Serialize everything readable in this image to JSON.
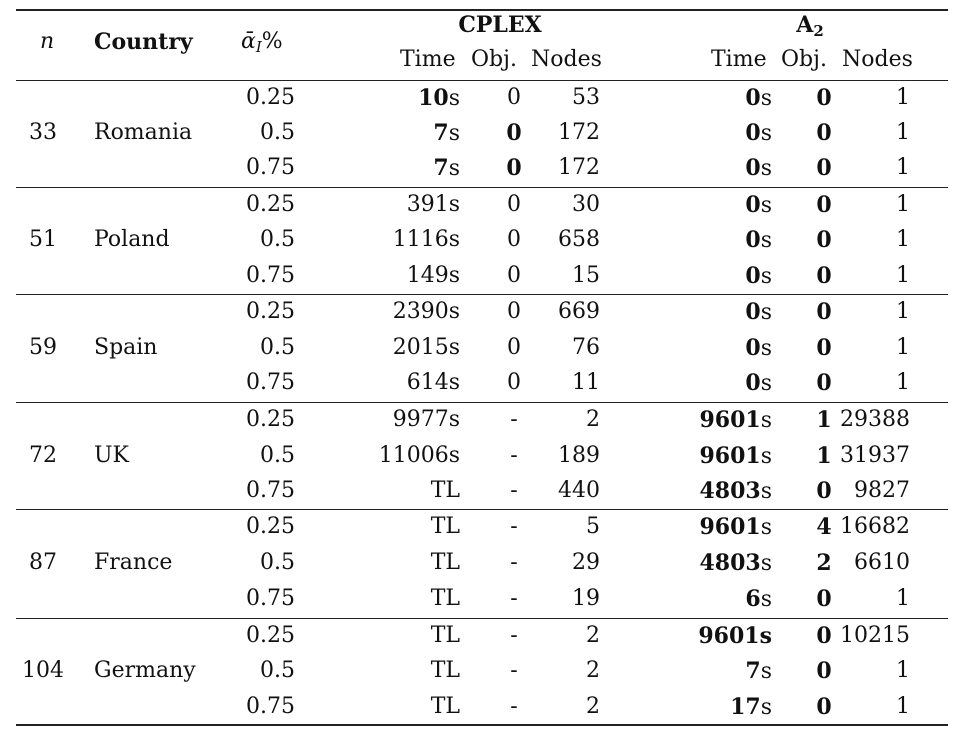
{
  "header": {
    "n_label": "n",
    "country_label": "Country",
    "alpha_symbol": "ᾱ",
    "alpha_sub": "I",
    "alpha_suffix": "%",
    "group1": "CPLEX",
    "group2_base": "A",
    "group2_sub": "2",
    "sub_time": "Time",
    "sub_obj": "Obj.",
    "sub_nodes": "Nodes"
  },
  "rows": [
    {
      "n": "33",
      "country": "Romania",
      "alpha": "0.25",
      "cplex_time": "10",
      "cplex_time_unit": "s",
      "cplex_time_bold": true,
      "cplex_obj": "0",
      "cplex_obj_bold": false,
      "cplex_nodes": "53",
      "a2_time": "0",
      "a2_time_unit": "s",
      "a2_time_bold": true,
      "a2_obj": "0",
      "a2_obj_bold": true,
      "a2_nodes": "1"
    },
    {
      "n": "",
      "country": "",
      "alpha": "0.5",
      "cplex_time": "7",
      "cplex_time_unit": "s",
      "cplex_time_bold": true,
      "cplex_obj": "0",
      "cplex_obj_bold": true,
      "cplex_nodes": "172",
      "a2_time": "0",
      "a2_time_unit": "s",
      "a2_time_bold": true,
      "a2_obj": "0",
      "a2_obj_bold": true,
      "a2_nodes": "1"
    },
    {
      "n": "",
      "country": "",
      "alpha": "0.75",
      "cplex_time": "7",
      "cplex_time_unit": "s",
      "cplex_time_bold": true,
      "cplex_obj": "0",
      "cplex_obj_bold": true,
      "cplex_nodes": "172",
      "a2_time": "0",
      "a2_time_unit": "s",
      "a2_time_bold": true,
      "a2_obj": "0",
      "a2_obj_bold": true,
      "a2_nodes": "1"
    },
    {
      "n": "51",
      "country": "Poland",
      "alpha": "0.25",
      "cplex_time": "391s",
      "cplex_time_unit": "",
      "cplex_time_bold": false,
      "cplex_obj": "0",
      "cplex_obj_bold": false,
      "cplex_nodes": "30",
      "a2_time": "0",
      "a2_time_unit": "s",
      "a2_time_bold": true,
      "a2_obj": "0",
      "a2_obj_bold": true,
      "a2_nodes": "1"
    },
    {
      "n": "",
      "country": "",
      "alpha": "0.5",
      "cplex_time": "1116s",
      "cplex_time_unit": "",
      "cplex_time_bold": false,
      "cplex_obj": "0",
      "cplex_obj_bold": false,
      "cplex_nodes": "658",
      "a2_time": "0",
      "a2_time_unit": "s",
      "a2_time_bold": true,
      "a2_obj": "0",
      "a2_obj_bold": true,
      "a2_nodes": "1"
    },
    {
      "n": "",
      "country": "",
      "alpha": "0.75",
      "cplex_time": "149s",
      "cplex_time_unit": "",
      "cplex_time_bold": false,
      "cplex_obj": "0",
      "cplex_obj_bold": false,
      "cplex_nodes": "15",
      "a2_time": "0",
      "a2_time_unit": "s",
      "a2_time_bold": true,
      "a2_obj": "0",
      "a2_obj_bold": true,
      "a2_nodes": "1"
    },
    {
      "n": "59",
      "country": "Spain",
      "alpha": "0.25",
      "cplex_time": "2390s",
      "cplex_time_unit": "",
      "cplex_time_bold": false,
      "cplex_obj": "0",
      "cplex_obj_bold": false,
      "cplex_nodes": "669",
      "a2_time": "0",
      "a2_time_unit": "s",
      "a2_time_bold": true,
      "a2_obj": "0",
      "a2_obj_bold": true,
      "a2_nodes": "1"
    },
    {
      "n": "",
      "country": "",
      "alpha": "0.5",
      "cplex_time": "2015s",
      "cplex_time_unit": "",
      "cplex_time_bold": false,
      "cplex_obj": "0",
      "cplex_obj_bold": false,
      "cplex_nodes": "76",
      "a2_time": "0",
      "a2_time_unit": "s",
      "a2_time_bold": true,
      "a2_obj": "0",
      "a2_obj_bold": true,
      "a2_nodes": "1"
    },
    {
      "n": "",
      "country": "",
      "alpha": "0.75",
      "cplex_time": "614s",
      "cplex_time_unit": "",
      "cplex_time_bold": false,
      "cplex_obj": "0",
      "cplex_obj_bold": false,
      "cplex_nodes": "11",
      "a2_time": "0",
      "a2_time_unit": "s",
      "a2_time_bold": true,
      "a2_obj": "0",
      "a2_obj_bold": true,
      "a2_nodes": "1"
    },
    {
      "n": "72",
      "country": "UK",
      "alpha": "0.25",
      "cplex_time": "9977s",
      "cplex_time_unit": "",
      "cplex_time_bold": false,
      "cplex_obj": "-",
      "cplex_obj_bold": false,
      "cplex_nodes": "2",
      "a2_time": "9601",
      "a2_time_unit": "s",
      "a2_time_bold": true,
      "a2_obj": "1",
      "a2_obj_bold": true,
      "a2_nodes": "29388"
    },
    {
      "n": "",
      "country": "",
      "alpha": "0.5",
      "cplex_time": "11006s",
      "cplex_time_unit": "",
      "cplex_time_bold": false,
      "cplex_obj": "-",
      "cplex_obj_bold": false,
      "cplex_nodes": "189",
      "a2_time": "9601",
      "a2_time_unit": "s",
      "a2_time_bold": true,
      "a2_obj": "1",
      "a2_obj_bold": true,
      "a2_nodes": "31937"
    },
    {
      "n": "",
      "country": "",
      "alpha": "0.75",
      "cplex_time": "TL",
      "cplex_time_unit": "",
      "cplex_time_bold": false,
      "cplex_obj": "-",
      "cplex_obj_bold": false,
      "cplex_nodes": "440",
      "a2_time": "4803",
      "a2_time_unit": "s",
      "a2_time_bold": true,
      "a2_obj": "0",
      "a2_obj_bold": true,
      "a2_nodes": "9827"
    },
    {
      "n": "87",
      "country": "France",
      "alpha": "0.25",
      "cplex_time": "TL",
      "cplex_time_unit": "",
      "cplex_time_bold": false,
      "cplex_obj": "-",
      "cplex_obj_bold": false,
      "cplex_nodes": "5",
      "a2_time": "9601",
      "a2_time_unit": "s",
      "a2_time_bold": true,
      "a2_obj": "4",
      "a2_obj_bold": true,
      "a2_nodes": "16682"
    },
    {
      "n": "",
      "country": "",
      "alpha": "0.5",
      "cplex_time": "TL",
      "cplex_time_unit": "",
      "cplex_time_bold": false,
      "cplex_obj": "-",
      "cplex_obj_bold": false,
      "cplex_nodes": "29",
      "a2_time": "4803",
      "a2_time_unit": "s",
      "a2_time_bold": true,
      "a2_obj": "2",
      "a2_obj_bold": true,
      "a2_nodes": "6610"
    },
    {
      "n": "",
      "country": "",
      "alpha": "0.75",
      "cplex_time": "TL",
      "cplex_time_unit": "",
      "cplex_time_bold": false,
      "cplex_obj": "-",
      "cplex_obj_bold": false,
      "cplex_nodes": "19",
      "a2_time": "6",
      "a2_time_unit": "s",
      "a2_time_bold": true,
      "a2_obj": "0",
      "a2_obj_bold": true,
      "a2_nodes": "1"
    },
    {
      "n": "104",
      "country": "Germany",
      "alpha": "0.25",
      "cplex_time": "TL",
      "cplex_time_unit": "",
      "cplex_time_bold": false,
      "cplex_obj": "-",
      "cplex_obj_bold": false,
      "cplex_nodes": "2",
      "a2_time": "9601s",
      "a2_time_unit": "",
      "a2_time_bold": true,
      "a2_obj": "0",
      "a2_obj_bold": true,
      "a2_nodes": "10215"
    },
    {
      "n": "",
      "country": "",
      "alpha": "0.5",
      "cplex_time": "TL",
      "cplex_time_unit": "",
      "cplex_time_bold": false,
      "cplex_obj": "-",
      "cplex_obj_bold": false,
      "cplex_nodes": "2",
      "a2_time": "7",
      "a2_time_unit": "s",
      "a2_time_bold": true,
      "a2_obj": "0",
      "a2_obj_bold": true,
      "a2_nodes": "1"
    },
    {
      "n": "",
      "country": "",
      "alpha": "0.75",
      "cplex_time": "TL",
      "cplex_time_unit": "",
      "cplex_time_bold": false,
      "cplex_obj": "-",
      "cplex_obj_bold": false,
      "cplex_nodes": "2",
      "a2_time": "17",
      "a2_time_unit": "s",
      "a2_time_bold": true,
      "a2_obj": "0",
      "a2_obj_bold": true,
      "a2_nodes": "1"
    }
  ]
}
